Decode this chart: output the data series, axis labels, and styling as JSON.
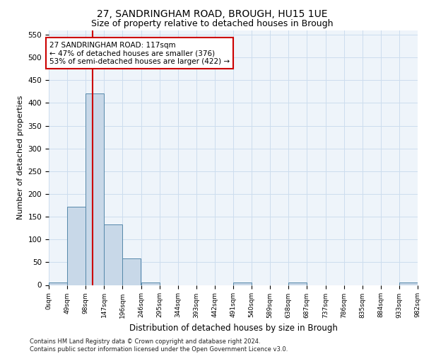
{
  "title_main": "27, SANDRINGHAM ROAD, BROUGH, HU15 1UE",
  "title_sub": "Size of property relative to detached houses in Brough",
  "xlabel": "Distribution of detached houses by size in Brough",
  "ylabel": "Number of detached properties",
  "footnote": "Contains HM Land Registry data © Crown copyright and database right 2024.\nContains public sector information licensed under the Open Government Licence v3.0.",
  "bin_edges": [
    0,
    49,
    98,
    147,
    196,
    246,
    295,
    344,
    393,
    442,
    491,
    540,
    589,
    638,
    687,
    737,
    786,
    835,
    884,
    933,
    982
  ],
  "bar_heights": [
    5,
    172,
    421,
    133,
    58,
    5,
    0,
    0,
    0,
    0,
    5,
    0,
    0,
    5,
    0,
    0,
    0,
    0,
    0,
    5
  ],
  "bar_color": "#c8d8e8",
  "bar_edge_color": "#5588aa",
  "vline_x": 117,
  "vline_color": "#cc0000",
  "annotation_text": "27 SANDRINGHAM ROAD: 117sqm\n← 47% of detached houses are smaller (376)\n53% of semi-detached houses are larger (422) →",
  "annotation_box_color": "#cc0000",
  "annotation_text_color": "#000000",
  "annotation_bg": "#ffffff",
  "ylim": [
    0,
    560
  ],
  "xlim": [
    0,
    982
  ],
  "tick_labels": [
    "0sqm",
    "49sqm",
    "98sqm",
    "147sqm",
    "196sqm",
    "246sqm",
    "295sqm",
    "344sqm",
    "393sqm",
    "442sqm",
    "491sqm",
    "540sqm",
    "589sqm",
    "638sqm",
    "687sqm",
    "737sqm",
    "786sqm",
    "835sqm",
    "884sqm",
    "933sqm",
    "982sqm"
  ],
  "yticks": [
    0,
    50,
    100,
    150,
    200,
    250,
    300,
    350,
    400,
    450,
    500,
    550
  ],
  "grid_color": "#ccddee",
  "bg_color": "#eef4fa",
  "title_main_fontsize": 10,
  "title_sub_fontsize": 9,
  "ylabel_fontsize": 8,
  "xlabel_fontsize": 8.5,
  "footnote_fontsize": 6.0,
  "annot_fontsize": 7.5,
  "xtick_fontsize": 6.5,
  "ytick_fontsize": 7.5
}
